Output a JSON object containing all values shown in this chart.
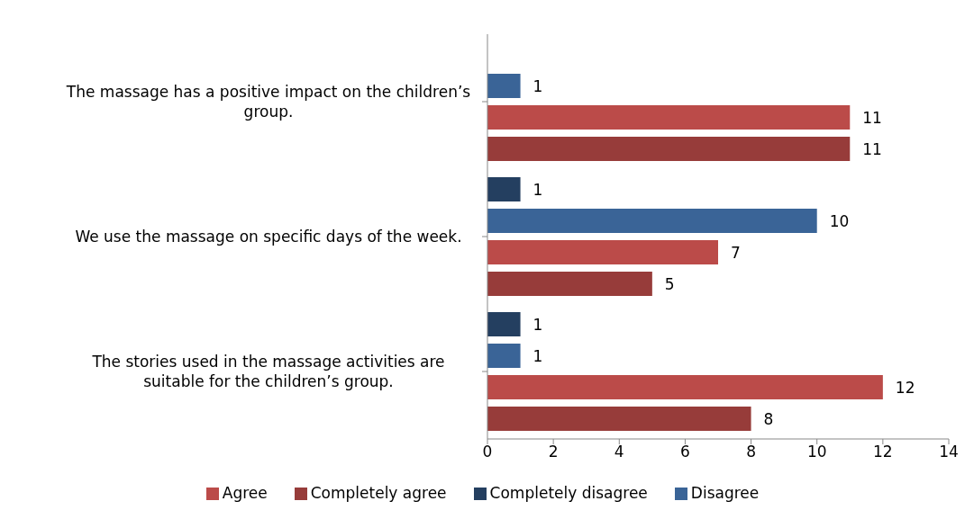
{
  "chart_data": {
    "type": "bar",
    "orientation": "horizontal",
    "categories": [
      "The massage has a positive impact on the children’s group.",
      "We use the massage on specific days of the week.",
      "The stories used in the massage activities are suitable for the children’s group."
    ],
    "series": [
      {
        "name": "Completely disagree",
        "color": "#243f60",
        "values": [
          null,
          1,
          1
        ]
      },
      {
        "name": "Disagree",
        "color": "#3a6497",
        "values": [
          1,
          10,
          1
        ]
      },
      {
        "name": "Agree",
        "color": "#bb4b49",
        "values": [
          11,
          7,
          12
        ]
      },
      {
        "name": "Completely agree",
        "color": "#973c3a",
        "values": [
          11,
          5,
          8
        ]
      }
    ],
    "xlim": [
      0,
      14
    ],
    "xticks": [
      0,
      2,
      4,
      6,
      8,
      10,
      12,
      14
    ],
    "data_labels": true,
    "legend": "bottom",
    "grid": false
  }
}
